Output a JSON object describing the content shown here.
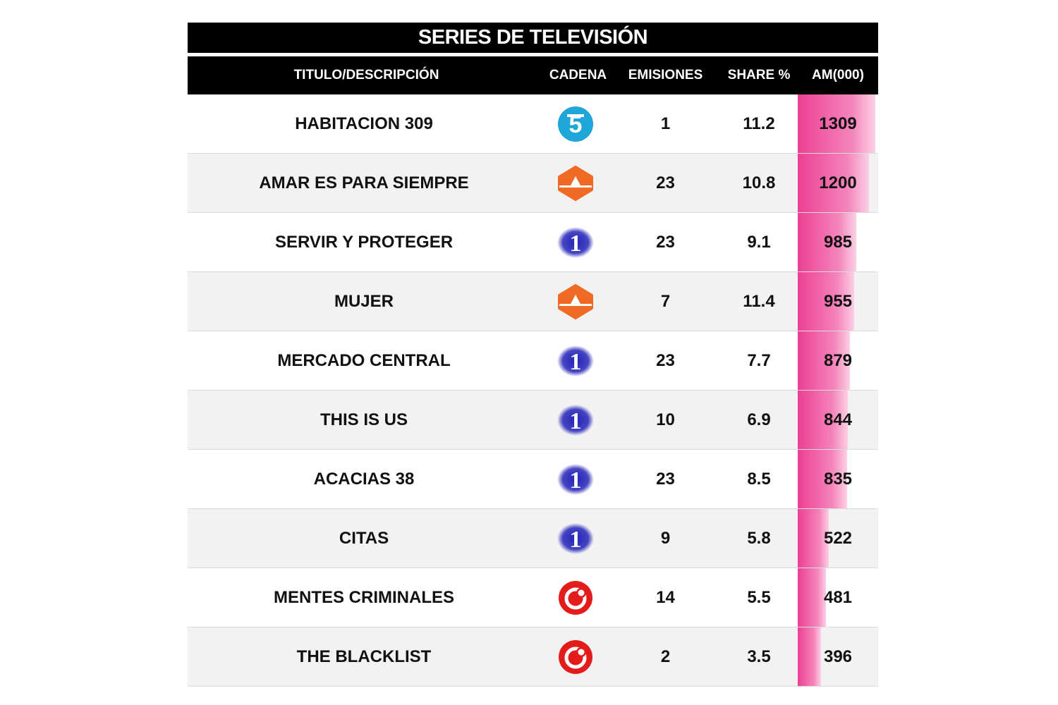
{
  "title": "SERIES DE TELEVISIÓN",
  "headers": {
    "title": "TITULO/DESCRIPCIÓN",
    "channel": "CADENA",
    "emissions": "EMISIONES",
    "share": "SHARE %",
    "am": "AM(000)"
  },
  "colors": {
    "bar": "#ec3f93",
    "telecinco": "#1ea6d9",
    "antena3": "#f06a23",
    "la1": "#2424b8",
    "cuatro": "#e41b1b"
  },
  "rows": [
    {
      "title": "HABITACION 309",
      "channel_icon": "telecinco-icon",
      "emissions": "1",
      "share": "11.2",
      "am": "1309",
      "am_value": 1309
    },
    {
      "title": "AMAR ES PARA SIEMPRE",
      "channel_icon": "antena3-icon",
      "emissions": "23",
      "share": "10.8",
      "am": "1200",
      "am_value": 1200
    },
    {
      "title": "SERVIR Y PROTEGER",
      "channel_icon": "la1-icon",
      "emissions": "23",
      "share": "9.1",
      "am": "985",
      "am_value": 985
    },
    {
      "title": "MUJER",
      "channel_icon": "antena3-icon",
      "emissions": "7",
      "share": "11.4",
      "am": "955",
      "am_value": 955
    },
    {
      "title": "MERCADO CENTRAL",
      "channel_icon": "la1-icon",
      "emissions": "23",
      "share": "7.7",
      "am": "879",
      "am_value": 879
    },
    {
      "title": "THIS IS US",
      "channel_icon": "la1-icon",
      "emissions": "10",
      "share": "6.9",
      "am": "844",
      "am_value": 844
    },
    {
      "title": "ACACIAS 38",
      "channel_icon": "la1-icon",
      "emissions": "23",
      "share": "8.5",
      "am": "835",
      "am_value": 835
    },
    {
      "title": "CITAS",
      "channel_icon": "la1-icon",
      "emissions": "9",
      "share": "5.8",
      "am": "522",
      "am_value": 522
    },
    {
      "title": "MENTES CRIMINALES",
      "channel_icon": "cuatro-icon",
      "emissions": "14",
      "share": "5.5",
      "am": "481",
      "am_value": 481
    },
    {
      "title": "THE BLACKLIST",
      "channel_icon": "cuatro-icon",
      "emissions": "2",
      "share": "3.5",
      "am": "396",
      "am_value": 396
    }
  ],
  "chart_data": {
    "type": "table",
    "title": "SERIES DE TELEVISIÓN",
    "columns": [
      "TITULO/DESCRIPCIÓN",
      "CADENA",
      "EMISIONES",
      "SHARE %",
      "AM(000)"
    ],
    "categories": [
      "HABITACION 309",
      "AMAR ES PARA SIEMPRE",
      "SERVIR Y PROTEGER",
      "MUJER",
      "MERCADO CENTRAL",
      "THIS IS US",
      "ACACIAS 38",
      "CITAS",
      "MENTES CRIMINALES",
      "THE BLACKLIST"
    ],
    "series": [
      {
        "name": "EMISIONES",
        "values": [
          1,
          23,
          23,
          7,
          23,
          10,
          23,
          9,
          14,
          2
        ]
      },
      {
        "name": "SHARE %",
        "values": [
          11.2,
          10.8,
          9.1,
          11.4,
          7.7,
          6.9,
          8.5,
          5.8,
          5.5,
          3.5
        ]
      },
      {
        "name": "AM(000)",
        "values": [
          1309,
          1200,
          985,
          955,
          879,
          844,
          835,
          522,
          481,
          396
        ]
      }
    ]
  }
}
